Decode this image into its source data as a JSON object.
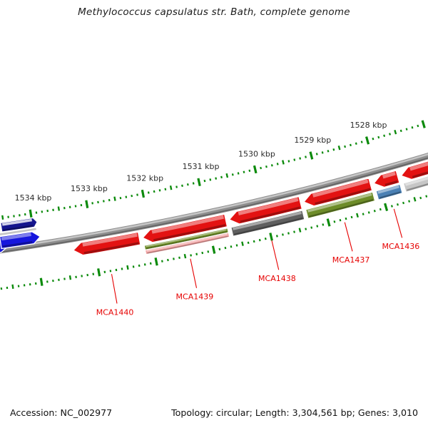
{
  "title": "Methylococcus capsulatus str. Bath, complete genome",
  "footer": {
    "accession": "Accession: NC_002977",
    "stats": "Topology: circular; Length: 3,304,561 bp; Genes: 3,010"
  },
  "colors": {
    "background": "#ffffff",
    "tick": "#0b8a0b",
    "ruler_label": "#2b2b2b",
    "gene_label": "#e60000",
    "leader": "#e60000",
    "backbone": "#8d8d8d",
    "cds_red": "#e31212",
    "cds_blue": "#1616dd",
    "navy": "#15158e",
    "olive": "#6d8c28",
    "pink": "#f0a3a3",
    "dark_gray": "#5f5f5f",
    "light_gray": "#c6c6c6",
    "steel_blue": "#4a80b4"
  },
  "chart_data": {
    "type": "circular-genome-map",
    "title": "Methylococcus capsulatus str. Bath, complete genome",
    "accession": "NC_002977",
    "topology": "circular",
    "length_bp": 3304561,
    "gene_count": 3010,
    "ruler": {
      "unit": "kbp",
      "label_suffix": " kbp",
      "major_ticks_kbp": [
        1534,
        1533,
        1532,
        1531,
        1530,
        1529,
        1528
      ],
      "minor_step_kbp": 0.1,
      "visible_range_kbp": [
        1526.9,
        1534.85
      ],
      "orientation": "position increases leftward (clockwise, view near bottom of circle)"
    },
    "features": [
      {
        "id": "MCA1440",
        "label": "MCA1440",
        "track": "outer",
        "shape": "arrow",
        "direction": "left",
        "color": "#e31212",
        "start_kbp": 1532.21,
        "end_kbp": 1533.37,
        "category_colors": []
      },
      {
        "id": "MCA1439",
        "label": "MCA1439",
        "track": "outer",
        "shape": "arrow",
        "direction": "left",
        "color": "#e31212",
        "start_kbp": 1530.69,
        "end_kbp": 1532.15,
        "category_colors": [
          "#6d8c28",
          "#f0a3a3"
        ]
      },
      {
        "id": "MCA1438",
        "label": "MCA1438",
        "track": "outer",
        "shape": "arrow",
        "direction": "left",
        "color": "#e31212",
        "start_kbp": 1529.38,
        "end_kbp": 1530.63,
        "category_colors": [
          "#5f5f5f"
        ]
      },
      {
        "id": "MCA1437",
        "label": "MCA1437",
        "track": "outer",
        "shape": "arrow",
        "direction": "left",
        "color": "#e31212",
        "start_kbp": 1528.15,
        "end_kbp": 1529.32,
        "category_colors": [
          "#6d8c28"
        ]
      },
      {
        "id": "MCA1436",
        "label": "MCA1436",
        "track": "outer",
        "shape": "arrow",
        "direction": "left",
        "color": "#e31212",
        "start_kbp": 1527.67,
        "end_kbp": 1528.09,
        "category_colors": [
          "#4a80b4"
        ]
      },
      {
        "id": "cds-right-edge",
        "label": null,
        "track": "outer",
        "shape": "arrow",
        "direction": "left",
        "color": "#e31212",
        "start_kbp": 1526.92,
        "end_kbp": 1527.61,
        "category_colors": [
          "#c6c6c6"
        ]
      },
      {
        "id": "cds-left-edge-tip",
        "label": null,
        "track": "inner-tip",
        "shape": "arrow",
        "direction": "right",
        "color": "#1616dd",
        "start_kbp": 1534.45,
        "end_kbp": 1534.82,
        "category_colors": []
      },
      {
        "id": "cds-left-edge",
        "label": null,
        "track": "inner",
        "shape": "arrow",
        "direction": "right",
        "color": "#1616dd",
        "start_kbp": 1533.9,
        "end_kbp": 1534.6,
        "category_colors": []
      },
      {
        "id": "inner-gray-band",
        "label": null,
        "track": "inner-band",
        "shape": "band",
        "direction": null,
        "color": "#c6c6c6",
        "start_kbp": 1533.94,
        "end_kbp": 1534.63,
        "category_colors": []
      },
      {
        "id": "inner-navy-band",
        "label": null,
        "track": "inner-navy",
        "shape": "arrow",
        "direction": "right",
        "color": "#15158e",
        "start_kbp": 1533.91,
        "end_kbp": 1534.55,
        "category_colors": []
      }
    ]
  }
}
